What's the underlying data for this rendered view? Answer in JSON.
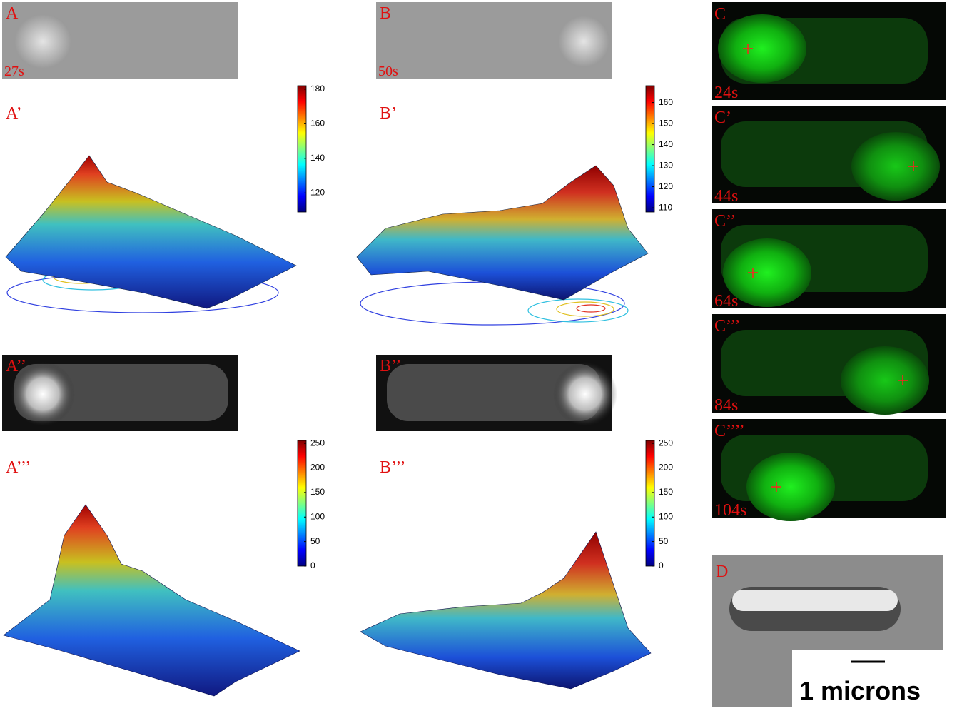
{
  "panels": {
    "A": {
      "label": "A",
      "time": "27s"
    },
    "B": {
      "label": "B",
      "time": "50s"
    },
    "A1": {
      "label": "A’",
      "colorbar": {
        "lim": [
          109,
          182
        ],
        "ticks": [
          120,
          140,
          160,
          180
        ]
      }
    },
    "B1": {
      "label": "B’",
      "colorbar": {
        "lim": [
          108,
          168
        ],
        "ticks": [
          110,
          120,
          130,
          140,
          150,
          160
        ]
      }
    },
    "A2": {
      "label": "A’’"
    },
    "B2": {
      "label": "B’’"
    },
    "A3": {
      "label": "A’’’",
      "colorbar": {
        "lim": [
          0,
          256
        ],
        "ticks": [
          0,
          50,
          100,
          150,
          200,
          250
        ]
      }
    },
    "B3": {
      "label": "B’’’",
      "colorbar": {
        "lim": [
          0,
          256
        ],
        "ticks": [
          0,
          50,
          100,
          150,
          200,
          250
        ]
      }
    },
    "C": [
      {
        "label": "C",
        "time": "24s"
      },
      {
        "label": "C’",
        "time": "44s"
      },
      {
        "label": "C’’",
        "time": "64s"
      },
      {
        "label": "C’’’",
        "time": "84s"
      },
      {
        "label": "C’’’’",
        "time": "104s"
      }
    ],
    "D": {
      "label": "D",
      "scale_bar": "1 microns"
    }
  }
}
